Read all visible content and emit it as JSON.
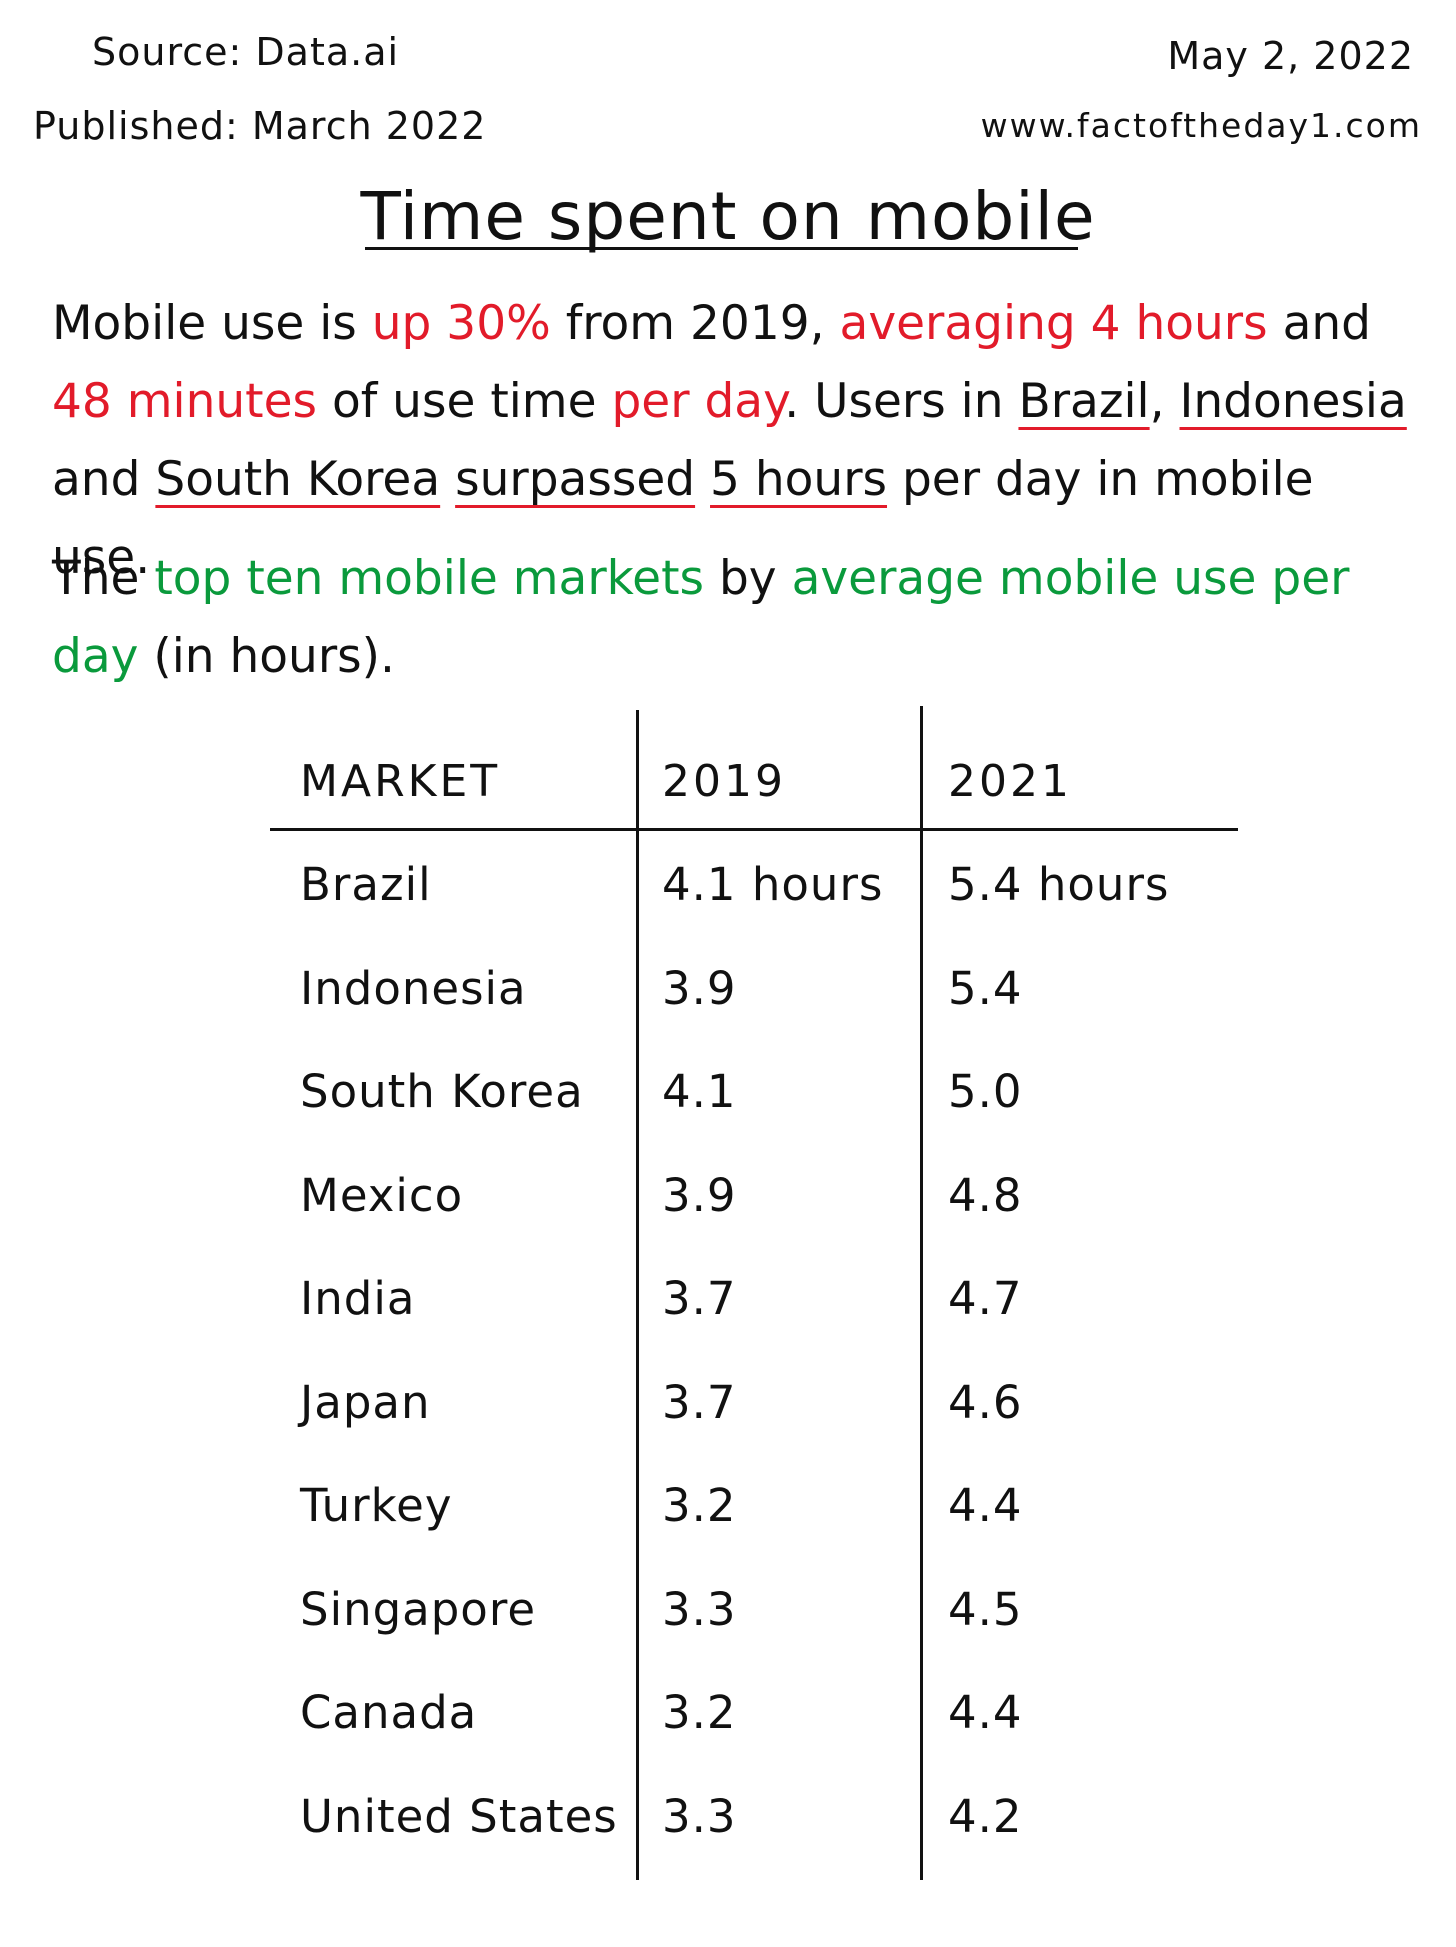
{
  "header": {
    "source": "Source: Data.ai",
    "published": "Published: March 2022",
    "date": "May 2, 2022",
    "website": "www.factoftheday1.com"
  },
  "title": "Time spent on mobile",
  "intro": {
    "t1": "Mobile use is ",
    "t2": "up 30%",
    "t3": " from 2019, ",
    "t4": "averaging 4 hours",
    "t5": " and ",
    "t6": "48 minutes",
    "t7": " of use time ",
    "t8": "per day",
    "t9": ". Users in ",
    "t10": "Brazil",
    "t11": ", ",
    "t12": "Indonesia",
    "t13": " and ",
    "t14": "South Korea",
    "t15": " ",
    "t16": "surpassed",
    "t17": " ",
    "t18": "5 hours",
    "t19": " per day in mobile use."
  },
  "markets_intro": {
    "t1": "The ",
    "t2": "top ten mobile markets",
    "t3": " by ",
    "t4": "average mobile use per day",
    "t5": " (in hours)."
  },
  "table": {
    "headers": [
      "MARKET",
      "2019",
      "2021"
    ],
    "rows": [
      [
        "Brazil",
        "4.1 hours",
        "5.4 hours"
      ],
      [
        "Indonesia",
        "3.9",
        "5.4"
      ],
      [
        "South Korea",
        "4.1",
        "5.0"
      ],
      [
        "Mexico",
        "3.9",
        "4.8"
      ],
      [
        "India",
        "3.7",
        "4.7"
      ],
      [
        "Japan",
        "3.7",
        "4.6"
      ],
      [
        "Turkey",
        "3.2",
        "4.4"
      ],
      [
        "Singapore",
        "3.3",
        "4.5"
      ],
      [
        "Canada",
        "3.2",
        "4.4"
      ],
      [
        "United States",
        "3.3",
        "4.2"
      ]
    ]
  }
}
